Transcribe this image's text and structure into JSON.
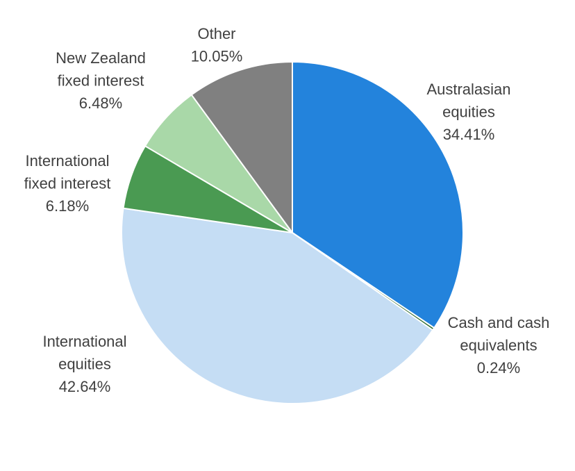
{
  "chart_data": {
    "type": "pie",
    "start_angle": "12 o'clock",
    "direction": "clockwise",
    "legend": "none (data labels)",
    "slices": [
      {
        "label": "Australasian equities",
        "value": 34.41,
        "value_label": "34.41%",
        "color": "#2383DC"
      },
      {
        "label": "Cash and cash equivalents",
        "value": 0.24,
        "value_label": "0.24%",
        "color": "#2E6B30"
      },
      {
        "label": "International equities",
        "value": 42.64,
        "value_label": "42.64%",
        "color": "#C5DDF4"
      },
      {
        "label": "International fixed interest",
        "value": 6.18,
        "value_label": "6.18%",
        "color": "#4A9A52"
      },
      {
        "label": "New Zealand fixed interest",
        "value": 6.48,
        "value_label": "6.48%",
        "color": "#A9D8A8"
      },
      {
        "label": "Other",
        "value": 10.05,
        "value_label": "10.05%",
        "color": "#808080"
      }
    ]
  }
}
